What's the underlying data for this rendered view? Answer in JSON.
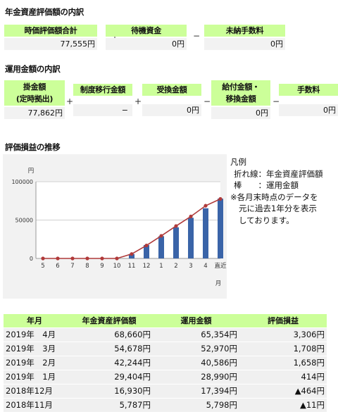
{
  "sec1": {
    "title": "年金資産評価額の内訳",
    "total_label": "時価評価額合計",
    "total_value": "77,555円",
    "plus": "+",
    "standby_label": "待機資金",
    "standby_value": "0円",
    "minus": "−",
    "unpaid_label": "未納手数料",
    "unpaid_value": "0円"
  },
  "sec2": {
    "title": "運用金額の内訳",
    "contrib_label1": "掛金額",
    "contrib_label2": "(定時拠出)",
    "contrib_value": "77,862円",
    "plus1": "+",
    "transfer_label": "制度移行金額",
    "transfer_value": "−",
    "plus2": "+",
    "receive_label": "受換金額",
    "receive_value": "0円",
    "minus1": "−",
    "payout_label1": "給付金額・",
    "payout_label2": "移換金額",
    "payout_value": "0円",
    "minus2": "−",
    "fee_label": "手数料",
    "fee_value": "0円"
  },
  "sec3": {
    "title": "評価損益の推移"
  },
  "legend": {
    "title": "凡例",
    "line1": "折れ線：年金資産評価額",
    "line2": "棒　　：運用金額",
    "note1": "※各月末時点のデータを",
    "note2": "元に過去1年分を表示",
    "note3": "しております。"
  },
  "chart_data": {
    "type": "bar",
    "ylabel": "円",
    "xlabel": "月",
    "ylim": [
      0,
      100000
    ],
    "yticks": [
      "0",
      "50000",
      "100000"
    ],
    "categories": [
      "5",
      "6",
      "7",
      "8",
      "9",
      "10",
      "11",
      "12",
      "1",
      "2",
      "3",
      "4",
      "直近"
    ],
    "series": [
      {
        "name": "年金資産評価額",
        "type": "line",
        "values": [
          0,
          0,
          0,
          0,
          0,
          0,
          5787,
          16930,
          29404,
          42244,
          54678,
          68660,
          77555
        ]
      },
      {
        "name": "運用金額",
        "type": "bar",
        "values": [
          0,
          0,
          0,
          0,
          0,
          0,
          5798,
          17394,
          28990,
          40586,
          52970,
          65354,
          77862
        ]
      }
    ],
    "colors": {
      "bar": "#3a64a8",
      "line": "#b03a3a"
    }
  },
  "table": {
    "headers": [
      "年月",
      "年金資産評価額",
      "運用金額",
      "評価損益"
    ],
    "rows": [
      [
        "2019年　4月",
        "68,660円",
        "65,354円",
        "3,306円"
      ],
      [
        "2019年　3月",
        "54,678円",
        "52,970円",
        "1,708円"
      ],
      [
        "2019年　2月",
        "42,244円",
        "40,586円",
        "1,658円"
      ],
      [
        "2019年　1月",
        "29,404円",
        "28,990円",
        "414円"
      ],
      [
        "2018年12月",
        "16,930円",
        "17,394円",
        "▲464円"
      ],
      [
        "2018年11月",
        "5,787円",
        "5,798円",
        "▲11円"
      ]
    ]
  }
}
